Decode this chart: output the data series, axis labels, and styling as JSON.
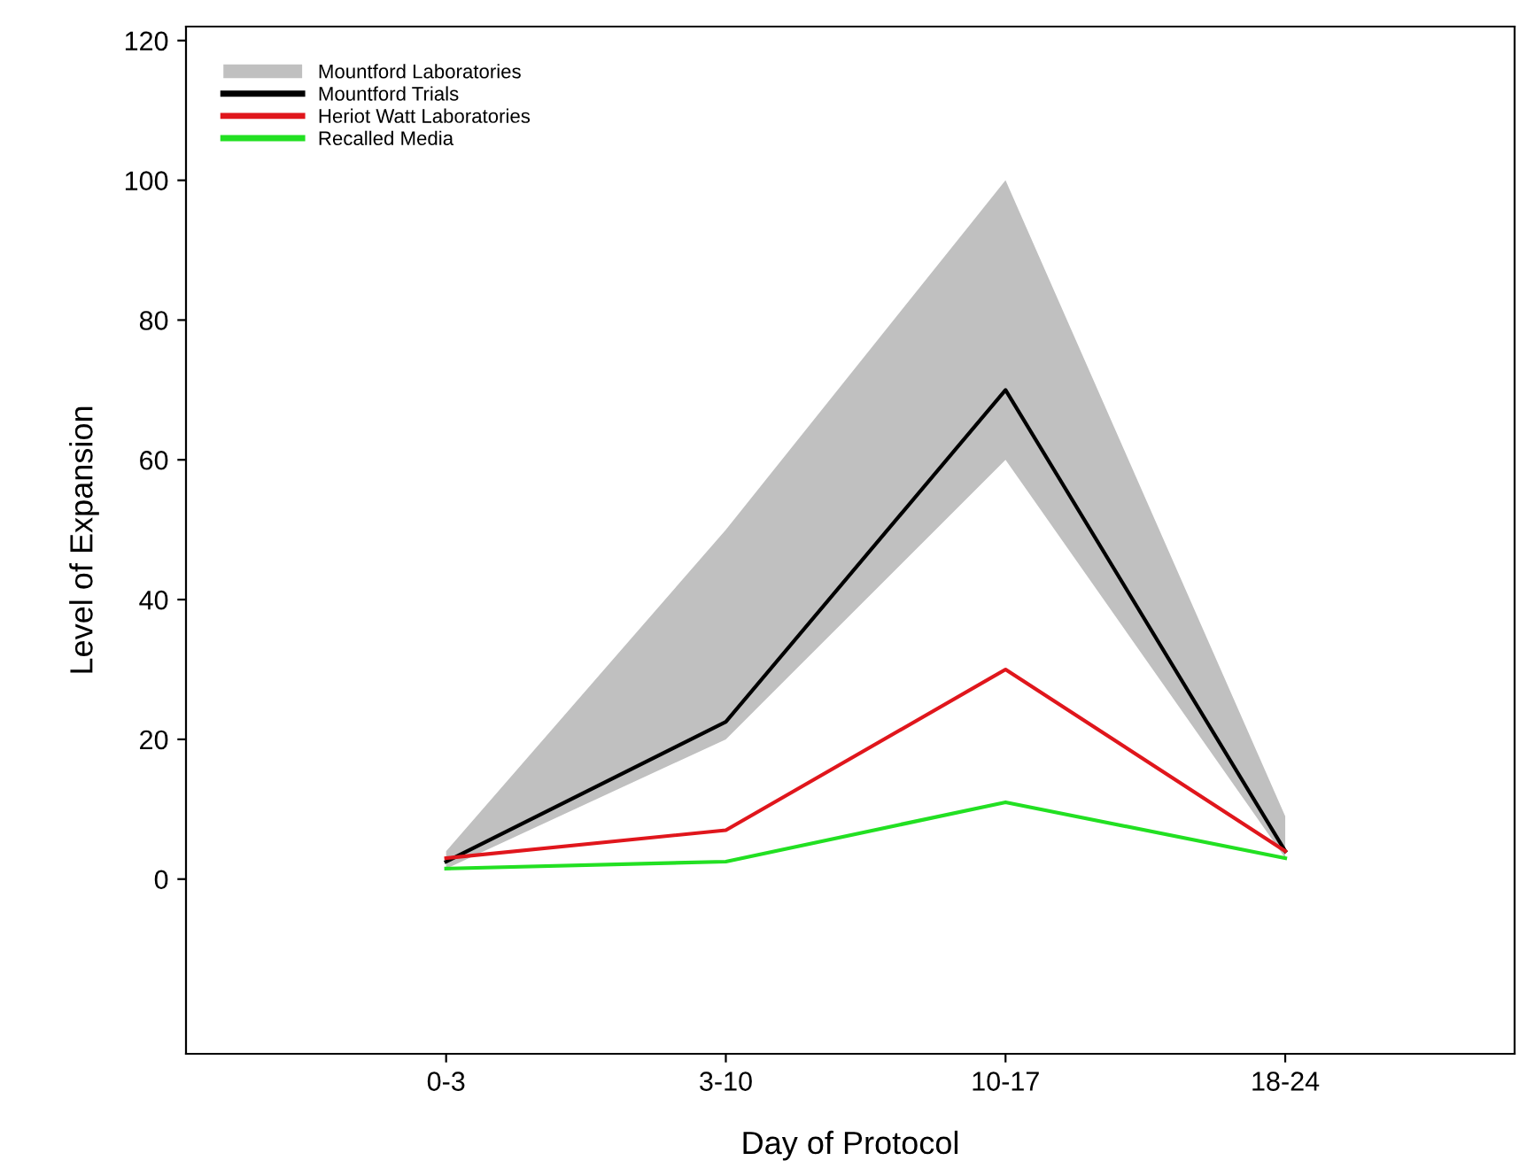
{
  "chart_data": {
    "type": "line",
    "xlabel": "Day of Protocol",
    "ylabel": "Level of Expansion",
    "categories": [
      "0-3",
      "3-10",
      "10-17",
      "18-24"
    ],
    "series": [
      {
        "name": "Mountford Laboratories",
        "type": "area",
        "color": "#c0c0c0",
        "values": [
          null,
          null,
          null,
          null
        ],
        "lower": [
          1.5,
          20,
          60,
          3
        ],
        "upper": [
          4,
          50,
          100,
          9
        ]
      },
      {
        "name": "Mountford Trials",
        "color": "#000000",
        "values": [
          2.5,
          22.5,
          70,
          4
        ]
      },
      {
        "name": "Heriot Watt Laboratories",
        "color": "#e0161c",
        "values": [
          3,
          7,
          30,
          4
        ]
      },
      {
        "name": "Recalled Media",
        "color": "#22e022",
        "values": [
          1.5,
          2.5,
          11,
          3
        ]
      }
    ],
    "ylim": [
      -25,
      122
    ],
    "yticks": [
      0,
      20,
      40,
      60,
      80,
      100,
      120
    ],
    "grid": false,
    "legend": "top left",
    "marker": "none",
    "line_style": "solid"
  }
}
